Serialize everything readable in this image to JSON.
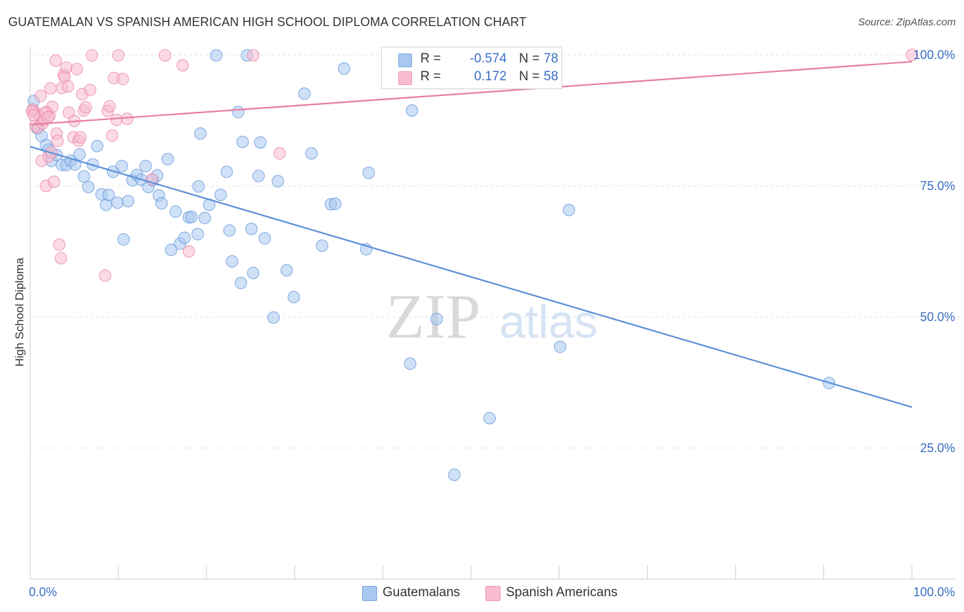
{
  "title": "GUATEMALAN VS SPANISH AMERICAN HIGH SCHOOL DIPLOMA CORRELATION CHART",
  "source": "Source: ZipAtlas.com",
  "watermark": {
    "zip": "ZIP",
    "atlas": "atlas"
  },
  "legend_box": [
    {
      "r_label": "R =",
      "r_value": "-0.574",
      "n_label": "N =",
      "n_value": "78",
      "color": "#a8c8f0",
      "border": "#7aa6e0"
    },
    {
      "r_label": "R =",
      "r_value": "0.172",
      "n_label": "N =",
      "n_value": "58",
      "color": "#f8bcd0",
      "border": "#ee94b2"
    }
  ],
  "chart_data": {
    "type": "scatter",
    "xlabel": "",
    "ylabel": "High School Diploma",
    "xlim": [
      0,
      100
    ],
    "ylim": [
      0,
      100
    ],
    "x_tick_labels": [
      "0.0%",
      "100.0%"
    ],
    "y_ticks": [
      25,
      50,
      75,
      100
    ],
    "y_tick_labels": [
      "25.0%",
      "50.0%",
      "75.0%",
      "100.0%"
    ],
    "grid": "horizontal dashed",
    "legend_placement": "bottom-center",
    "series": [
      {
        "name": "Guatemalans",
        "color": "#5b8fd8",
        "fill": "#a8c8f0",
        "trend": {
          "x": [
            0,
            100
          ],
          "y": [
            82.5,
            32.8
          ]
        },
        "points": [
          [
            0.4,
            91.2
          ],
          [
            0.8,
            86
          ],
          [
            1.3,
            84.5
          ],
          [
            1.8,
            82.8
          ],
          [
            2.1,
            81.9
          ],
          [
            2.4,
            79.8
          ],
          [
            3.0,
            80.9
          ],
          [
            3.6,
            79.0
          ],
          [
            4.1,
            79.0
          ],
          [
            4.6,
            79.8
          ],
          [
            5.1,
            79.1
          ],
          [
            5.6,
            81.0
          ],
          [
            6.1,
            76.8
          ],
          [
            6.6,
            74.8
          ],
          [
            7.1,
            79.1
          ],
          [
            7.6,
            82.6
          ],
          [
            8.1,
            73.4
          ],
          [
            8.6,
            71.4
          ],
          [
            8.9,
            73.3
          ],
          [
            9.4,
            77.7
          ],
          [
            9.9,
            71.8
          ],
          [
            10.4,
            78.8
          ],
          [
            10.6,
            64.8
          ],
          [
            11.1,
            72.1
          ],
          [
            11.6,
            76.1
          ],
          [
            12.1,
            77.1
          ],
          [
            12.6,
            76.2
          ],
          [
            13.1,
            78.8
          ],
          [
            13.4,
            74.8
          ],
          [
            13.9,
            76.1
          ],
          [
            14.4,
            77.0
          ],
          [
            14.6,
            73.2
          ],
          [
            14.9,
            71.7
          ],
          [
            15.6,
            80.1
          ],
          [
            16.0,
            62.8
          ],
          [
            16.5,
            70.1
          ],
          [
            17.0,
            64.0
          ],
          [
            17.5,
            65.1
          ],
          [
            18.0,
            69.0
          ],
          [
            18.3,
            69.1
          ],
          [
            19.0,
            65.8
          ],
          [
            19.1,
            74.9
          ],
          [
            19.3,
            85.0
          ],
          [
            19.8,
            68.9
          ],
          [
            20.3,
            71.4
          ],
          [
            21.1,
            99.9
          ],
          [
            21.6,
            73.3
          ],
          [
            22.3,
            77.7
          ],
          [
            22.6,
            66.5
          ],
          [
            22.9,
            60.6
          ],
          [
            23.6,
            89.1
          ],
          [
            23.9,
            56.5
          ],
          [
            24.1,
            83.4
          ],
          [
            24.6,
            99.9
          ],
          [
            25.1,
            66.8
          ],
          [
            25.3,
            58.4
          ],
          [
            25.9,
            76.9
          ],
          [
            26.1,
            83.3
          ],
          [
            26.6,
            65.0
          ],
          [
            27.6,
            49.9
          ],
          [
            28.1,
            75.9
          ],
          [
            29.1,
            58.9
          ],
          [
            29.9,
            53.8
          ],
          [
            31.1,
            92.6
          ],
          [
            31.9,
            81.2
          ],
          [
            33.1,
            63.6
          ],
          [
            34.1,
            71.5
          ],
          [
            34.6,
            71.6
          ],
          [
            35.6,
            97.4
          ],
          [
            38.1,
            62.9
          ],
          [
            38.4,
            77.5
          ],
          [
            43.1,
            41.1
          ],
          [
            43.3,
            89.4
          ],
          [
            46.1,
            49.6
          ],
          [
            48.1,
            19.9
          ],
          [
            52.1,
            30.7
          ],
          [
            60.1,
            44.3
          ],
          [
            61.1,
            70.4
          ],
          [
            90.6,
            37.4
          ]
        ]
      },
      {
        "name": "Spanish Americans",
        "color": "#e87da0",
        "fill": "#f8bcd0",
        "trend": {
          "x": [
            0,
            100
          ],
          "y": [
            86.7,
            98.7
          ]
        },
        "points": [
          [
            0.3,
            89.6
          ],
          [
            0.5,
            89.1
          ],
          [
            0.6,
            86.5
          ],
          [
            0.9,
            86.1
          ],
          [
            1.1,
            88.3
          ],
          [
            1.2,
            92.2
          ],
          [
            1.3,
            79.8
          ],
          [
            1.4,
            86.9
          ],
          [
            1.6,
            87.6
          ],
          [
            1.8,
            75.0
          ],
          [
            1.9,
            89.1
          ],
          [
            2.1,
            80.6
          ],
          [
            2.2,
            88.4
          ],
          [
            2.3,
            93.6
          ],
          [
            2.4,
            81.4
          ],
          [
            2.5,
            90.1
          ],
          [
            2.7,
            75.8
          ],
          [
            2.9,
            98.9
          ],
          [
            3.0,
            85.0
          ],
          [
            3.1,
            83.6
          ],
          [
            3.3,
            63.8
          ],
          [
            3.5,
            61.2
          ],
          [
            3.6,
            93.7
          ],
          [
            3.8,
            96.2
          ],
          [
            3.9,
            95.8
          ],
          [
            4.1,
            97.6
          ],
          [
            4.3,
            94.0
          ],
          [
            4.4,
            89.0
          ],
          [
            4.9,
            84.3
          ],
          [
            5.0,
            87.4
          ],
          [
            5.3,
            97.3
          ],
          [
            5.5,
            83.6
          ],
          [
            5.7,
            84.3
          ],
          [
            5.9,
            92.5
          ],
          [
            6.1,
            89.4
          ],
          [
            6.3,
            90.0
          ],
          [
            6.8,
            93.3
          ],
          [
            7.0,
            99.9
          ],
          [
            8.5,
            57.9
          ],
          [
            8.8,
            89.3
          ],
          [
            9.0,
            90.2
          ],
          [
            9.3,
            84.6
          ],
          [
            9.5,
            95.6
          ],
          [
            9.8,
            87.6
          ],
          [
            10.0,
            99.9
          ],
          [
            10.5,
            95.4
          ],
          [
            11.0,
            87.8
          ],
          [
            13.8,
            76.3
          ],
          [
            15.3,
            99.9
          ],
          [
            17.3,
            98.0
          ],
          [
            18.0,
            62.5
          ],
          [
            25.3,
            99.9
          ],
          [
            28.3,
            81.2
          ],
          [
            100,
            100
          ],
          [
            0.2,
            89.3
          ],
          [
            0.4,
            88.5
          ],
          [
            1.7,
            89.0
          ],
          [
            2.0,
            88.1
          ]
        ]
      }
    ]
  }
}
